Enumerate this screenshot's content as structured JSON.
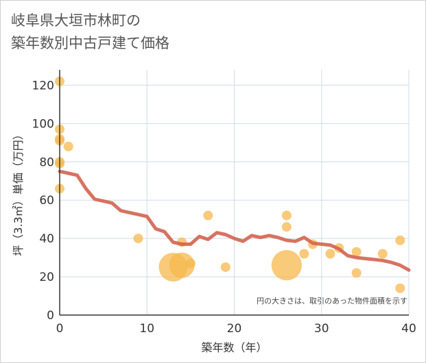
{
  "title": {
    "line1": "岐阜県大垣市林町の",
    "line2": "築年数別中古戸建て価格"
  },
  "note": "円の大きさは、取引のあった物件面積を示す",
  "colors": {
    "bubble": "#f5b84e",
    "trend": "#d4634f",
    "grid": "#cfdbe6",
    "axis": "#333333"
  },
  "chart_data": {
    "type": "scatter",
    "xlabel": "築年数（年）",
    "ylabel": "坪（3.3㎡）単価（万円）",
    "xlim": [
      0,
      40
    ],
    "ylim": [
      0,
      128
    ],
    "xticks": [
      0,
      10,
      20,
      30,
      40
    ],
    "yticks": [
      0,
      20,
      40,
      60,
      80,
      100,
      120
    ],
    "grid": true,
    "series": [
      {
        "kind": "bubble",
        "points": [
          {
            "x": 0,
            "y": 122,
            "size": 1
          },
          {
            "x": 0,
            "y": 97,
            "size": 1
          },
          {
            "x": 0,
            "y": 92,
            "size": 1
          },
          {
            "x": 0,
            "y": 91,
            "size": 1
          },
          {
            "x": 1,
            "y": 88,
            "size": 1
          },
          {
            "x": 0,
            "y": 80,
            "size": 1
          },
          {
            "x": 0,
            "y": 79,
            "size": 1
          },
          {
            "x": 0,
            "y": 66,
            "size": 1
          },
          {
            "x": 9,
            "y": 40,
            "size": 1
          },
          {
            "x": 13,
            "y": 25,
            "size": 9
          },
          {
            "x": 14,
            "y": 26,
            "size": 7
          },
          {
            "x": 14,
            "y": 38,
            "size": 1
          },
          {
            "x": 15,
            "y": 27,
            "size": 1
          },
          {
            "x": 17,
            "y": 52,
            "size": 1
          },
          {
            "x": 19,
            "y": 25,
            "size": 1
          },
          {
            "x": 26,
            "y": 52,
            "size": 1
          },
          {
            "x": 26,
            "y": 46,
            "size": 1
          },
          {
            "x": 26,
            "y": 26,
            "size": 10
          },
          {
            "x": 28,
            "y": 32,
            "size": 1
          },
          {
            "x": 29,
            "y": 37,
            "size": 1
          },
          {
            "x": 31,
            "y": 32,
            "size": 1
          },
          {
            "x": 32,
            "y": 35,
            "size": 1
          },
          {
            "x": 34,
            "y": 33,
            "size": 1
          },
          {
            "x": 34,
            "y": 22,
            "size": 1
          },
          {
            "x": 37,
            "y": 32,
            "size": 1
          },
          {
            "x": 39,
            "y": 39,
            "size": 1
          },
          {
            "x": 39,
            "y": 14,
            "size": 1
          }
        ]
      },
      {
        "kind": "line",
        "x": [
          0,
          1,
          2,
          3,
          4,
          5,
          6,
          7,
          8,
          9,
          10,
          11,
          12,
          13,
          14,
          15,
          16,
          17,
          18,
          19,
          20,
          21,
          22,
          23,
          24,
          25,
          26,
          27,
          28,
          29,
          30,
          31,
          32,
          33,
          34,
          35,
          36,
          37,
          38,
          39,
          40
        ],
        "y": [
          75,
          74,
          73,
          66,
          60.5,
          59.5,
          58.5,
          54.5,
          53.5,
          52.5,
          51.5,
          45,
          43.5,
          38,
          37,
          37,
          41,
          39.5,
          43,
          42,
          40,
          38.5,
          41.5,
          40.5,
          41.5,
          40.5,
          39,
          38.5,
          40.5,
          37.5,
          37,
          36.5,
          34.5,
          31,
          30,
          29.5,
          29,
          28.5,
          27.5,
          26,
          23.5
        ]
      }
    ]
  }
}
